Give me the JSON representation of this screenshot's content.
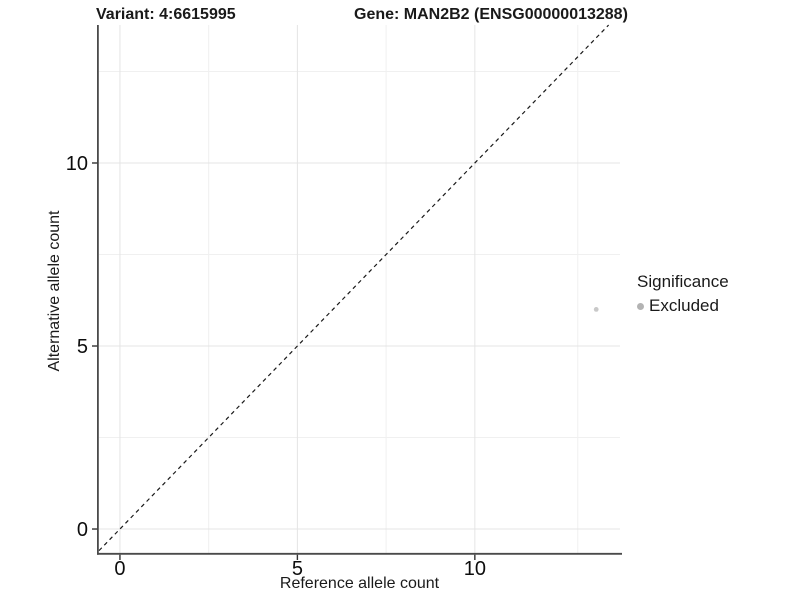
{
  "chart_data": {
    "type": "scatter",
    "title_left": "Variant: 4:6615995",
    "title_right": "Gene: MAN2B2 (ENSG00000013288)",
    "xlabel": "Reference allele count",
    "ylabel": "Alternative allele count",
    "xlim": [
      -0.59,
      14.09
    ],
    "ylim": [
      -0.655,
      13.77
    ],
    "x_major_ticks": [
      0,
      5,
      10
    ],
    "y_major_ticks": [
      0,
      5,
      10
    ],
    "x_minor_breaks": [
      2.5,
      7.5,
      12.9
    ],
    "y_minor_breaks": [
      2.5,
      7.5,
      12.5
    ],
    "grid": true,
    "legend_position": "right",
    "identity_line": {
      "slope": 1,
      "intercept": 0,
      "style": "dashed",
      "color": "#1a1a1a"
    },
    "points": [
      {
        "x": 13.42,
        "y": 6.0,
        "series": "Excluded",
        "color": "#c9c9c9",
        "radius": 2.4
      }
    ],
    "legend": {
      "title": "Significance",
      "items": [
        {
          "label": "Excluded",
          "color": "#b3b3b3"
        }
      ]
    },
    "colors": {
      "background": "#ffffff",
      "grid_major": "#e4e4e4",
      "grid_minor": "#f0f0f0",
      "axis_line": "#4a4a4a",
      "tick_mark": "#333333",
      "tick_label": "#0d0d0d",
      "text": "#1a1a1a"
    }
  }
}
